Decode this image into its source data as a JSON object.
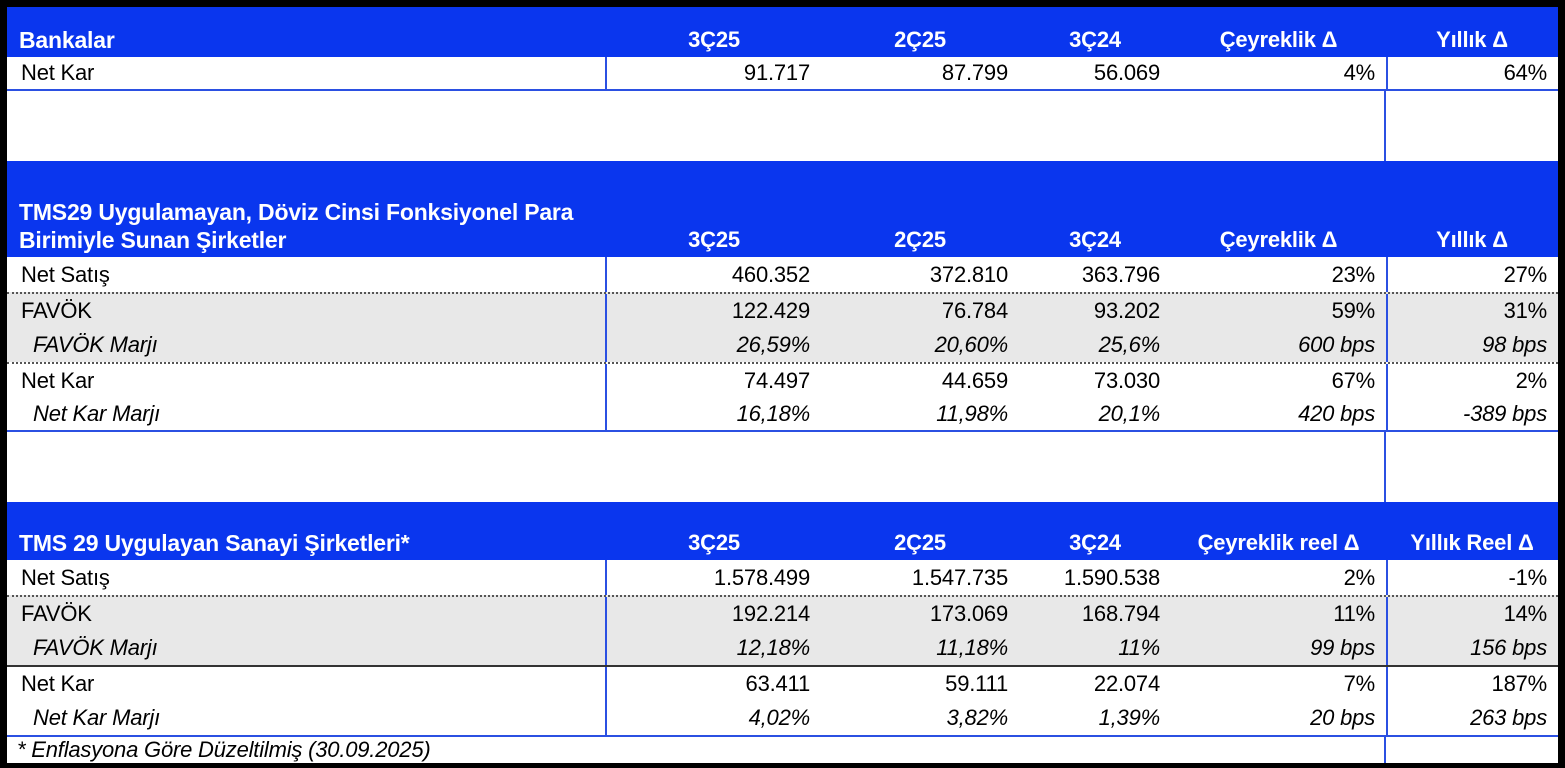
{
  "colors": {
    "header_bg": "#0A36EE",
    "header_text": "#FFFFFF",
    "shaded_row_bg": "#E8E8E8",
    "grid_line_blue": "#2B50E2",
    "outer_border": "#000000",
    "text": "#000000"
  },
  "footnote": "* Enflasyona Göre Düzeltilmiş (30.09.2025)",
  "chart_data": [
    {
      "type": "table",
      "title": "Bankalar",
      "title_lines": [
        "Bankalar"
      ],
      "columns": [
        "3Ç25",
        "2Ç25",
        "3Ç24",
        "Çeyreklik Δ",
        "Yıllık Δ"
      ],
      "rows": [
        {
          "label": "Net Kar",
          "values": [
            "91.717",
            "87.799",
            "56.069",
            "4%",
            "64%"
          ],
          "shade": "white",
          "italic": false,
          "border_top": null
        }
      ]
    },
    {
      "type": "table",
      "title": "TMS29 Uygulamayan, Döviz Cinsi Fonksiyonel Para Birimiyle Sunan Şirketler",
      "title_lines": [
        "TMS29 Uygulamayan, Döviz Cinsi Fonksiyonel Para",
        "Birimiyle Sunan Şirketler"
      ],
      "columns": [
        "3Ç25",
        "2Ç25",
        "3Ç24",
        "Çeyreklik Δ",
        "Yıllık Δ"
      ],
      "rows": [
        {
          "label": "Net Satış",
          "values": [
            "460.352",
            "372.810",
            "363.796",
            "23%",
            "27%"
          ],
          "shade": "white",
          "italic": false,
          "border_top": null
        },
        {
          "label": "FAVÖK",
          "values": [
            "122.429",
            "76.784",
            "93.202",
            "59%",
            "31%"
          ],
          "shade": "gray",
          "italic": false,
          "border_top": "dotted"
        },
        {
          "label": "FAVÖK Marjı",
          "values": [
            "26,59%",
            "20,60%",
            "25,6%",
            "600 bps",
            "98 bps"
          ],
          "shade": "gray",
          "italic": true,
          "border_top": null
        },
        {
          "label": "Net Kar",
          "values": [
            "74.497",
            "44.659",
            "73.030",
            "67%",
            "2%"
          ],
          "shade": "white",
          "italic": false,
          "border_top": "dotted"
        },
        {
          "label": "Net Kar Marjı",
          "values": [
            "16,18%",
            "11,98%",
            "20,1%",
            "420 bps",
            "-389 bps"
          ],
          "shade": "white",
          "italic": true,
          "border_top": null
        }
      ]
    },
    {
      "type": "table",
      "title": "TMS 29 Uygulayan Sanayi Şirketleri*",
      "title_lines": [
        "TMS 29 Uygulayan Sanayi Şirketleri*"
      ],
      "columns": [
        "3Ç25",
        "2Ç25",
        "3Ç24",
        "Çeyreklik reel Δ",
        "Yıllık Reel Δ"
      ],
      "rows": [
        {
          "label": "Net Satış",
          "values": [
            "1.578.499",
            "1.547.735",
            "1.590.538",
            "2%",
            "-1%"
          ],
          "shade": "white",
          "italic": false,
          "border_top": null
        },
        {
          "label": "FAVÖK",
          "values": [
            "192.214",
            "173.069",
            "168.794",
            "11%",
            "14%"
          ],
          "shade": "gray",
          "italic": false,
          "border_top": "dotted"
        },
        {
          "label": "FAVÖK Marjı",
          "values": [
            "12,18%",
            "11,18%",
            "11%",
            "99 bps",
            "156 bps"
          ],
          "shade": "gray",
          "italic": true,
          "border_top": null
        },
        {
          "label": "Net Kar",
          "values": [
            "63.411",
            "59.111",
            "22.074",
            "7%",
            "187%"
          ],
          "shade": "white",
          "italic": false,
          "border_top": "solid"
        },
        {
          "label": "Net Kar Marjı",
          "values": [
            "4,02%",
            "3,82%",
            "1,39%",
            "20 bps",
            "263 bps"
          ],
          "shade": "white",
          "italic": true,
          "border_top": null
        }
      ]
    }
  ]
}
